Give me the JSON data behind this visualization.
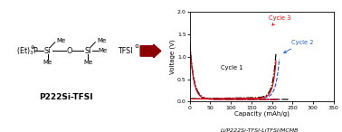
{
  "fig_width": 3.78,
  "fig_height": 1.46,
  "dpi": 100,
  "arrow_color": "#8B0000",
  "background": "#ffffff",
  "chemical_label": "P222Si-TFSI",
  "chart_xlabel": "Capacity (mAh/g)",
  "chart_ylabel": "Voltage (V)",
  "chart_title": "Li/P222Si-TFSI-LiTFSI/MCMB",
  "cycle1_color": "#000000",
  "cycle2_color": "#1a5cd4",
  "cycle3_color": "#e60000",
  "xlim": [
    0,
    350
  ],
  "ylim": [
    0.0,
    2.0
  ],
  "xticks": [
    0,
    50,
    100,
    150,
    200,
    250,
    300,
    350
  ],
  "yticks": [
    0.0,
    0.5,
    1.0,
    1.5,
    2.0
  ]
}
